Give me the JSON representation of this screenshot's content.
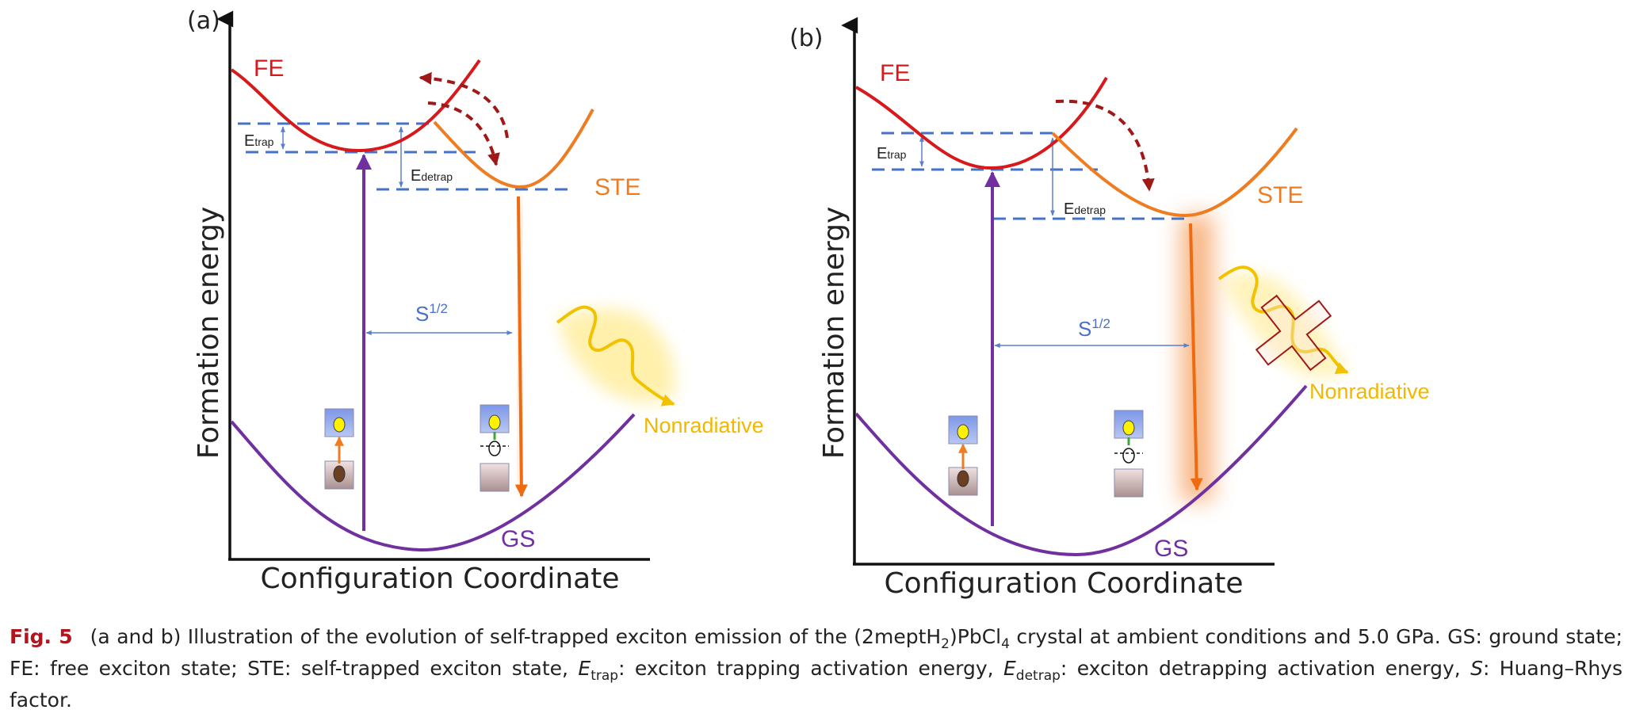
{
  "panels": [
    {
      "id": "a",
      "label": "(a)",
      "y_axis_title": "Formation energy",
      "x_axis_title": "Configuration  Coordinate",
      "curve_labels": {
        "fe": "FE",
        "ste": "STE",
        "gs": "GS"
      },
      "energy_labels": {
        "e": "E",
        "trap_sub": "trap",
        "detrap_sub": "detrap"
      },
      "s_label": {
        "base": "S",
        "sup": "1/2"
      },
      "nonradiative_label": "Nonradiative",
      "nonradiative_blocked": false
    },
    {
      "id": "b",
      "label": "(b)",
      "y_axis_title": "Formation energy",
      "x_axis_title": "Configuration  Coordinate",
      "curve_labels": {
        "fe": "FE",
        "ste": "STE",
        "gs": "GS"
      },
      "energy_labels": {
        "e": "E",
        "trap_sub": "trap",
        "detrap_sub": "detrap"
      },
      "s_label": {
        "base": "S",
        "sup": "1/2"
      },
      "nonradiative_label": "Nonradiative",
      "nonradiative_blocked": true
    }
  ],
  "colors": {
    "fe": "#d7191c",
    "ste": "#ee7d22",
    "gs": "#7030a0",
    "dashed_level": "#4472c4",
    "arrow_blue": "#5b7fd0",
    "emission": "#f06a10",
    "dark_red_arrow": "#a01818",
    "nonradiative": "#f2c200"
  },
  "caption": {
    "fig_no": "Fig. 5",
    "text_1": "(a and b) Illustration of the evolution of self-trapped exciton emission of the (2meptH",
    "sub_1": "2",
    "text_2": ")PbCl",
    "sub_2": "4",
    "text_3": " crystal at ambient conditions and 5.0 GPa. GS: ground state; FE: free exciton state; STE: self-trapped exciton state, ",
    "e_trap_sym": "E",
    "e_trap_sub": "trap",
    "text_4": ": exciton trapping activation energy, ",
    "e_detrap_sym": "E",
    "e_detrap_sub": "detrap",
    "text_5": ": exciton detrapping activation energy, ",
    "s_sym": "S",
    "text_6": ": Huang–Rhys factor."
  }
}
